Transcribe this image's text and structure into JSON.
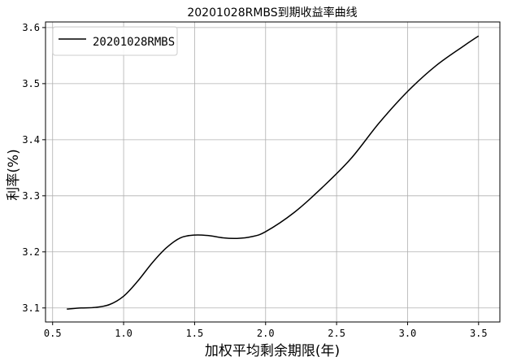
{
  "chart_data": {
    "type": "line",
    "title": "20201028RMBS到期收益率曲线",
    "xlabel": "加权平均剩余期限(年)",
    "ylabel": "利率(%)",
    "xlim": [
      0.45,
      3.65
    ],
    "ylim": [
      3.075,
      3.61
    ],
    "xticks": [
      0.5,
      1.0,
      1.5,
      2.0,
      2.5,
      3.0,
      3.5
    ],
    "xtick_labels": [
      "0.5",
      "1.0",
      "1.5",
      "2.0",
      "2.5",
      "3.0",
      "3.5"
    ],
    "yticks": [
      3.1,
      3.2,
      3.3,
      3.4,
      3.5,
      3.6
    ],
    "ytick_labels": [
      "3.1",
      "3.2",
      "3.3",
      "3.4",
      "3.5",
      "3.6"
    ],
    "grid": true,
    "legend_position": "top-left",
    "series": [
      {
        "name": "20201028RMBS",
        "color": "#000000",
        "x": [
          0.6,
          0.7,
          0.8,
          0.9,
          1.0,
          1.1,
          1.2,
          1.3,
          1.4,
          1.5,
          1.6,
          1.7,
          1.8,
          1.9,
          2.0,
          2.2,
          2.4,
          2.6,
          2.8,
          3.0,
          3.2,
          3.4,
          3.5
        ],
        "y": [
          3.098,
          3.1,
          3.101,
          3.106,
          3.121,
          3.148,
          3.18,
          3.207,
          3.225,
          3.23,
          3.229,
          3.225,
          3.224,
          3.227,
          3.236,
          3.27,
          3.315,
          3.366,
          3.43,
          3.486,
          3.532,
          3.568,
          3.585
        ]
      }
    ]
  }
}
